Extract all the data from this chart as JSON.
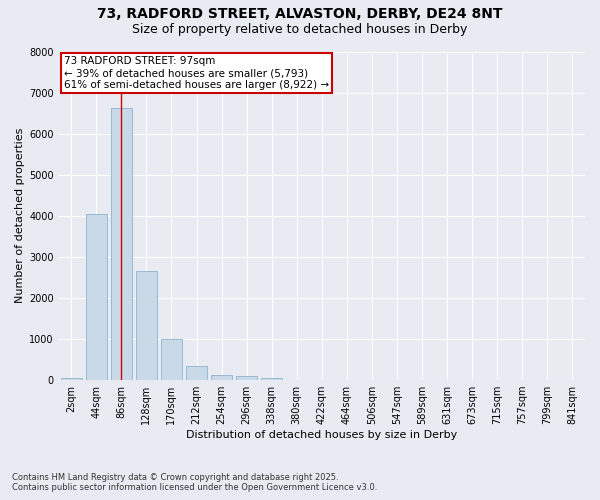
{
  "title_line1": "73, RADFORD STREET, ALVASTON, DERBY, DE24 8NT",
  "title_line2": "Size of property relative to detached houses in Derby",
  "xlabel": "Distribution of detached houses by size in Derby",
  "ylabel": "Number of detached properties",
  "categories": [
    "2sqm",
    "44sqm",
    "86sqm",
    "128sqm",
    "170sqm",
    "212sqm",
    "254sqm",
    "296sqm",
    "338sqm",
    "380sqm",
    "422sqm",
    "464sqm",
    "506sqm",
    "547sqm",
    "589sqm",
    "631sqm",
    "673sqm",
    "715sqm",
    "757sqm",
    "799sqm",
    "841sqm"
  ],
  "values": [
    50,
    4050,
    6620,
    2650,
    1000,
    350,
    130,
    90,
    55,
    0,
    0,
    0,
    0,
    0,
    0,
    0,
    0,
    0,
    0,
    0,
    0
  ],
  "bar_color": "#c9d9e8",
  "bar_edgecolor": "#7fa8c9",
  "vline_x_index": 2,
  "vline_color": "#cc0000",
  "annotation_title": "73 RADFORD STREET: 97sqm",
  "annotation_line2": "← 39% of detached houses are smaller (5,793)",
  "annotation_line3": "61% of semi-detached houses are larger (8,922) →",
  "annotation_box_color": "#cc0000",
  "annotation_bg": "#ffffff",
  "ylim": [
    0,
    8000
  ],
  "yticks": [
    0,
    1000,
    2000,
    3000,
    4000,
    5000,
    6000,
    7000,
    8000
  ],
  "bg_color": "#e8ecf2",
  "plot_bg_color": "#e8ecf2",
  "grid_color": "#ffffff",
  "footnote1": "Contains HM Land Registry data © Crown copyright and database right 2025.",
  "footnote2": "Contains public sector information licensed under the Open Government Licence v3.0.",
  "title_fontsize": 10,
  "subtitle_fontsize": 9,
  "axis_label_fontsize": 8,
  "tick_fontsize": 7,
  "annotation_fontsize": 7.5,
  "footnote_fontsize": 6
}
